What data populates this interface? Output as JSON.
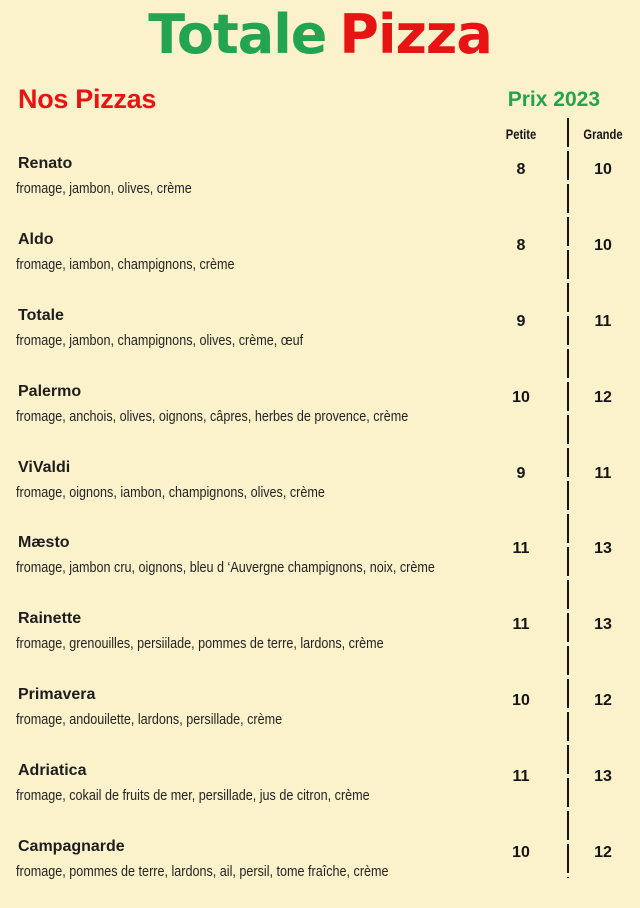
{
  "header": {
    "title_part1": "Totale",
    "title_part2": "Pizza",
    "section_title": "Nos Pizzas",
    "price_year_label": "Prix 2023"
  },
  "colors": {
    "background": "#FBF2CB",
    "green": "#23A450",
    "red": "#E81414",
    "text": "#1D1D1D"
  },
  "table": {
    "columns": [
      "Petite",
      "Grande"
    ]
  },
  "menu_items": [
    {
      "name": "Renato",
      "description": "fromage, jambon, olives, crème",
      "petite": 8,
      "grande": 10
    },
    {
      "name": "Aldo",
      "description": "fromage, iambon, champignons, crème",
      "petite": 8,
      "grande": 10
    },
    {
      "name": "Totale",
      "description": "fromage, jambon, champignons, olives, crème, œuf",
      "petite": 9,
      "grande": 11
    },
    {
      "name": "Palermo",
      "description": "fromage, anchois, olives, oignons, câpres, herbes de provence, crème",
      "petite": 10,
      "grande": 12
    },
    {
      "name": "ViValdi",
      "description": "fromage, oignons, iambon, champignons, olives, crème",
      "petite": 9,
      "grande": 11
    },
    {
      "name": "Mæsto",
      "description": "fromage, jambon cru, oignons, bleu d ‘Auvergne champignons, noix, crème",
      "petite": 11,
      "grande": 13
    },
    {
      "name": "Rainette",
      "description": "fromage, grenouilles, persiilade, pommes de terre, lardons, crème",
      "petite": 11,
      "grande": 13
    },
    {
      "name": "Primavera",
      "description": "fromage, andouilette, lardons, persillade, crème",
      "petite": 10,
      "grande": 12
    },
    {
      "name": "Adriatica",
      "description": "fromage, cokail de fruits de mer, persillade, jus de citron, crème",
      "petite": 11,
      "grande": 13
    },
    {
      "name": "Campagnarde",
      "description": "fromage, pommes de terre, lardons, ail, persil, tome fraîche, crème",
      "petite": 10,
      "grande": 12
    }
  ]
}
